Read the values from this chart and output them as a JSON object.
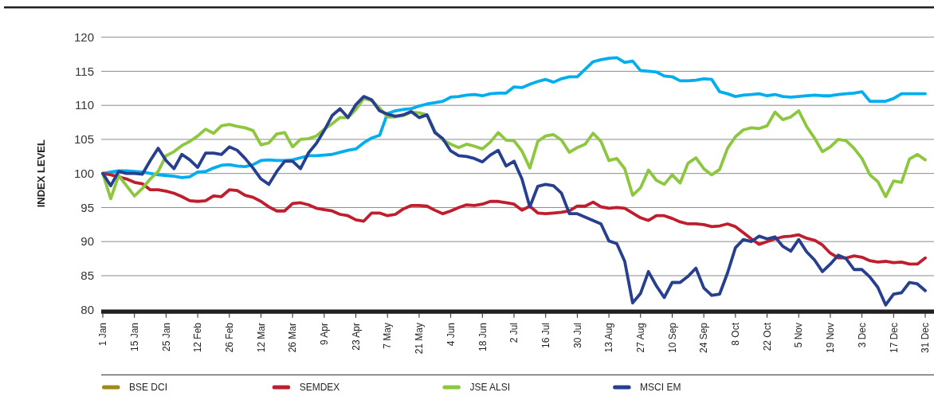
{
  "chart_data": {
    "type": "line",
    "ylabel": "INDEX LEVEL",
    "categories": [
      "1 Jan",
      null,
      null,
      null,
      "15 Jan",
      null,
      null,
      null,
      "25 Jan",
      null,
      null,
      null,
      "12 Feb",
      null,
      null,
      null,
      "26 Feb",
      null,
      null,
      null,
      "12 Mar",
      null,
      null,
      null,
      "26 Mar",
      null,
      null,
      null,
      "9 Apr",
      null,
      null,
      null,
      "23 Apr",
      null,
      null,
      null,
      "7 May",
      null,
      null,
      null,
      "21 May",
      null,
      null,
      null,
      "4 Jun",
      null,
      null,
      null,
      "18 Jun",
      null,
      null,
      null,
      "2 Jul",
      null,
      null,
      null,
      "16 Jul",
      null,
      null,
      null,
      "30 Jul",
      null,
      null,
      null,
      "13 Aug",
      null,
      null,
      null,
      "27 Aug",
      null,
      null,
      null,
      "10 Sep",
      null,
      null,
      null,
      "24 Sep",
      null,
      null,
      null,
      "8 Oct",
      null,
      null,
      null,
      "22 Oct",
      null,
      null,
      null,
      "5 Nov",
      null,
      null,
      null,
      "19 Nov",
      null,
      null,
      null,
      "3 Dec",
      null,
      null,
      null,
      "17 Dec",
      null,
      null,
      null,
      "31 Dec"
    ],
    "ylim": [
      80,
      120
    ],
    "yticks": [
      80,
      85,
      90,
      95,
      100,
      105,
      110,
      115,
      120
    ],
    "grid": "y",
    "legend": "bottom",
    "series": [
      {
        "name": "BSE DCI",
        "color": "#a08914",
        "values": [
          null,
          null,
          null,
          null,
          null,
          null,
          null,
          null,
          null,
          null,
          null,
          null,
          null,
          null,
          null,
          null,
          null,
          null,
          null,
          null,
          null,
          null,
          null,
          null,
          null,
          null,
          null,
          null,
          null,
          null,
          null,
          null,
          null,
          null,
          null,
          null,
          null,
          null,
          null,
          null,
          null,
          null,
          null,
          null,
          null,
          null,
          null,
          null,
          null,
          null,
          null,
          null,
          null,
          null,
          null,
          null,
          null,
          null,
          null,
          null,
          null,
          null,
          null,
          null,
          null,
          null,
          null,
          null,
          null,
          null,
          null,
          null,
          null,
          null,
          null,
          null,
          null,
          null,
          null,
          null,
          null,
          null,
          null,
          null,
          null,
          null,
          null,
          null,
          null,
          null,
          null,
          null,
          null,
          null,
          null,
          null,
          null,
          null,
          null,
          null,
          null,
          null,
          null,
          null,
          null
        ]
      },
      {
        "color": "#00aeef",
        "values": [
          100,
          100.2,
          100.4,
          100.4,
          100.3,
          100.2,
          100,
          99.8,
          99.7,
          99.6,
          99.4,
          99.5,
          100.2,
          100.3,
          100.8,
          101.2,
          101.3,
          101.1,
          101,
          101.3,
          101.9,
          102,
          101.9,
          101.9,
          102,
          102.3,
          102.6,
          102.6,
          102.7,
          102.8,
          103.1,
          103.4,
          103.6,
          104.5,
          105.2,
          105.6,
          108.8,
          109.2,
          109.4,
          109.5,
          109.9,
          110.2,
          110.4,
          110.6,
          111.2,
          111.3,
          111.5,
          111.6,
          111.4,
          111.7,
          111.8,
          111.8,
          112.7,
          112.6,
          113.1,
          113.5,
          113.8,
          113.4,
          113.9,
          114.2,
          114.2,
          115.3,
          116.4,
          116.7,
          116.9,
          117,
          116.3,
          116.5,
          115.1,
          115,
          114.9,
          114.3,
          114.2,
          113.6,
          113.6,
          113.7,
          113.9,
          113.8,
          112,
          111.7,
          111.3,
          111.5,
          111.6,
          111.7,
          111.4,
          111.6,
          111.3,
          111.2,
          111.3,
          111.4,
          111.5,
          111.4,
          111.4,
          111.6,
          111.7,
          111.8,
          112,
          110.6,
          110.6,
          110.6,
          111,
          111.7,
          111.7,
          111.7,
          111.7
        ]
      },
      {
        "name": "SEMDEX",
        "color": "#be1e2d",
        "values": [
          100,
          99.8,
          99.5,
          99.2,
          98.7,
          98.5,
          97.6,
          97.6,
          97.4,
          97.1,
          96.6,
          96,
          95.9,
          96,
          96.7,
          96.6,
          97.6,
          97.5,
          96.8,
          96.5,
          95.9,
          95.1,
          94.5,
          94.5,
          95.6,
          95.7,
          95.4,
          94.9,
          94.7,
          94.5,
          94,
          93.8,
          93.2,
          93,
          94.2,
          94.2,
          93.8,
          94,
          94.8,
          95.3,
          95.3,
          95.2,
          94.6,
          94.1,
          94.5,
          95,
          95.4,
          95.3,
          95.5,
          95.9,
          95.9,
          95.7,
          95.5,
          94.6,
          95.2,
          94.2,
          94.1,
          94.2,
          94.3,
          94.5,
          95.2,
          95.2,
          95.8,
          95.1,
          94.9,
          95,
          94.9,
          94.2,
          93.5,
          93.1,
          93.8,
          93.8,
          93.4,
          92.9,
          92.6,
          92.6,
          92.5,
          92.2,
          92.3,
          92.6,
          92.2,
          91.3,
          90.4,
          89.6,
          90,
          90.4,
          90.7,
          90.8,
          91,
          90.5,
          90.2,
          89.5,
          88.3,
          87.6,
          87.6,
          87.9,
          87.7,
          87.2,
          87,
          87.1,
          86.9,
          87,
          86.7,
          86.7,
          87.6
        ]
      },
      {
        "name": "JSE ALSI",
        "color": "#8dc63f",
        "values": [
          100,
          96.3,
          99.7,
          98.2,
          96.7,
          97.8,
          99.2,
          100.3,
          102.6,
          103.2,
          104.1,
          104.7,
          105.5,
          106.5,
          105.9,
          107,
          107.2,
          106.9,
          106.7,
          106.3,
          104.2,
          104.5,
          105.8,
          106,
          103.9,
          105,
          105.1,
          105.5,
          106.5,
          107.3,
          108.2,
          108.2,
          109.4,
          111,
          110.7,
          109.6,
          108.3,
          108.3,
          108.5,
          109,
          108.9,
          108.6,
          106.2,
          104.9,
          104.3,
          103.8,
          104.3,
          104,
          103.6,
          104.6,
          106,
          104.9,
          104.8,
          103.3,
          100.8,
          104.7,
          105.5,
          105.7,
          104.9,
          103.1,
          103.8,
          104.3,
          105.9,
          104.7,
          101.9,
          102.2,
          100.7,
          96.8,
          97.9,
          100.5,
          99,
          98.4,
          99.8,
          98.6,
          101.5,
          102.3,
          100.7,
          99.8,
          100.6,
          103.7,
          105.4,
          106.4,
          106.7,
          106.6,
          107,
          109,
          107.9,
          108.3,
          109.2,
          106.9,
          105.2,
          103.2,
          103.9,
          105,
          104.8,
          103.7,
          102.2,
          99.8,
          98.8,
          96.6,
          98.9,
          98.7,
          102.1,
          102.8,
          102
        ]
      },
      {
        "name": "MSCI EM",
        "color": "#263f8f",
        "values": [
          100,
          98.2,
          100.3,
          100,
          100,
          99.9,
          101.9,
          103.7,
          101.9,
          100.7,
          102.8,
          102,
          100.9,
          103,
          103,
          102.8,
          103.9,
          103.4,
          102.2,
          100.8,
          99.2,
          98.4,
          100.3,
          101.8,
          101.8,
          100.7,
          103,
          104.4,
          106.3,
          108.5,
          109.5,
          108.2,
          110.1,
          111.3,
          110.8,
          109.2,
          108.7,
          108.4,
          108.6,
          109.1,
          108.2,
          108.6,
          106,
          105.1,
          103.3,
          102.6,
          102.5,
          102.2,
          101.7,
          102.7,
          103.4,
          101.1,
          101.8,
          99.2,
          95.1,
          98.1,
          98.4,
          98.2,
          97.1,
          94.1,
          94.1,
          93.6,
          93.1,
          92.6,
          90.1,
          89.7,
          87.1,
          81,
          82.4,
          85.6,
          83.5,
          81.8,
          84,
          84,
          84.9,
          86.1,
          83.2,
          82.1,
          82.3,
          85.4,
          89.1,
          90.3,
          90,
          90.8,
          90.4,
          90.7,
          89.3,
          88.6,
          90.3,
          88.5,
          87.3,
          85.6,
          86.7,
          88,
          87.5,
          85.9,
          85.9,
          84.8,
          83.3,
          80.7,
          82.3,
          82.5,
          84,
          83.8,
          82.8
        ]
      }
    ]
  }
}
